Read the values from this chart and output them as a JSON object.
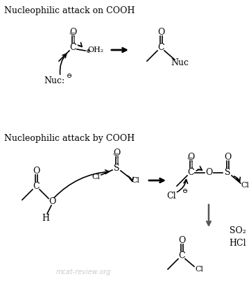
{
  "title1": "Nucleophilic attack on COOH",
  "title2": "Nucleophilic attack by COOH",
  "watermark": "mcat-review.org",
  "bg_color": "#ffffff",
  "text_color": "#000000",
  "gray_color": "#888888",
  "watermark_color": "#cccccc"
}
